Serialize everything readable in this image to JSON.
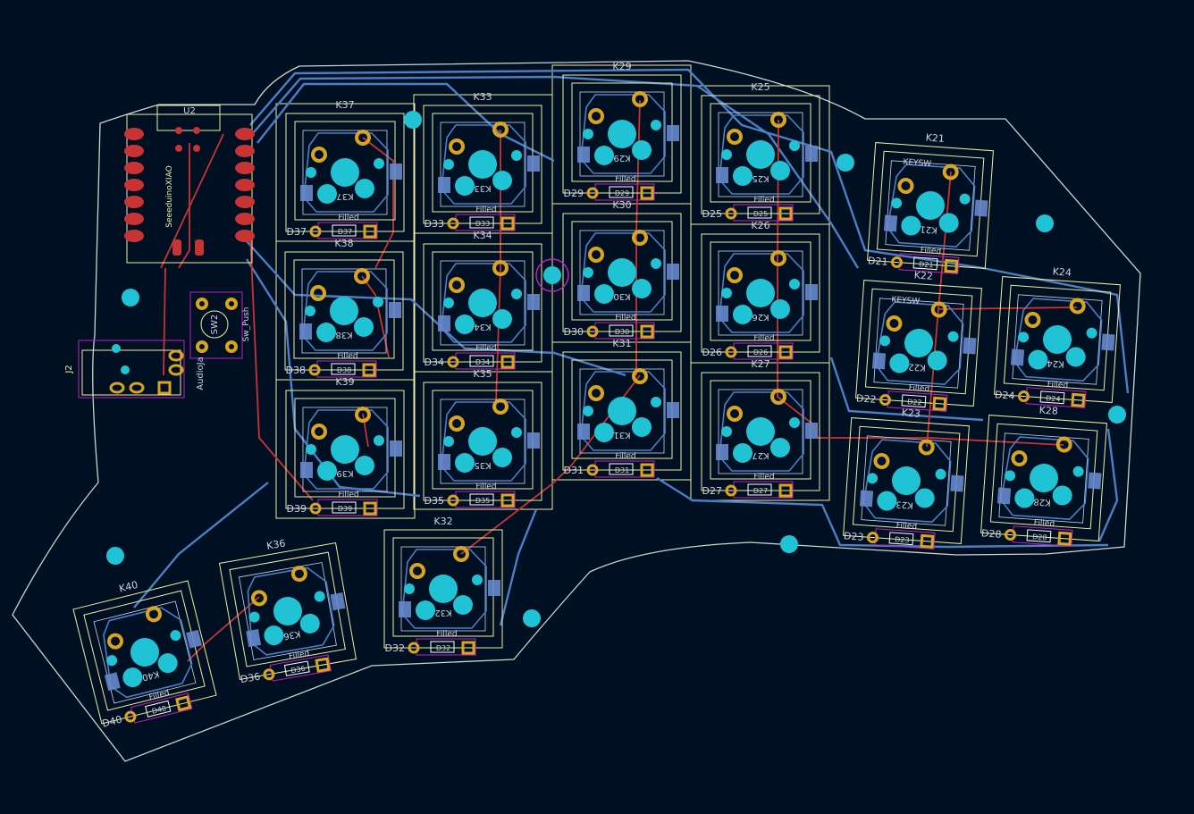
{
  "app": {
    "name": "PCB layout view",
    "colors": {
      "background": "#001023",
      "edge_cuts": "#d0d2cd",
      "silkscreen": "#f2eda1",
      "courtyard": "#f2eda1",
      "front_copper": "#c83434",
      "back_copper": "#4d7fc4",
      "pad_gold": "#d9a520",
      "hole_cyan": "#1fc3d4",
      "back_pad": "#6688cc",
      "fab_magenta": "#c21fbd",
      "text_grey": "#cfd3e0"
    }
  },
  "board": {
    "switches": [
      {
        "id": "K37",
        "ref": "K37",
        "diode": "D37"
      },
      {
        "id": "K38",
        "ref": "K38",
        "diode": "D38"
      },
      {
        "id": "K39",
        "ref": "K39",
        "diode": "D39"
      },
      {
        "id": "K33",
        "ref": "K33",
        "diode": "D33"
      },
      {
        "id": "K34",
        "ref": "K34",
        "diode": "D34"
      },
      {
        "id": "K35",
        "ref": "K35",
        "diode": "D35"
      },
      {
        "id": "K29",
        "ref": "K29",
        "diode": "D29"
      },
      {
        "id": "K30",
        "ref": "K30",
        "diode": "D30"
      },
      {
        "id": "K31",
        "ref": "K31",
        "diode": "D31"
      },
      {
        "id": "K25",
        "ref": "K25",
        "diode": "D25"
      },
      {
        "id": "K26",
        "ref": "K26",
        "diode": "D26"
      },
      {
        "id": "K27",
        "ref": "K27",
        "diode": "D27"
      },
      {
        "id": "K21",
        "ref": "K21",
        "diode": "D21",
        "value": "KEYSW"
      },
      {
        "id": "K22",
        "ref": "K22",
        "diode": "D22",
        "value": "KEYSW"
      },
      {
        "id": "K23",
        "ref": "K23",
        "diode": "D23"
      },
      {
        "id": "K24",
        "ref": "K24",
        "diode": "D24"
      },
      {
        "id": "K28",
        "ref": "K28",
        "diode": "D28"
      },
      {
        "id": "K32",
        "ref": "K32",
        "diode": "D32"
      },
      {
        "id": "K36",
        "ref": "K36",
        "diode": "D36"
      },
      {
        "id": "K40",
        "ref": "K40",
        "diode": "D40"
      }
    ],
    "filled_label": "Filled",
    "mcu": {
      "ref": "U2",
      "value": "SeeeduinoXIAO"
    },
    "push": {
      "ref": "SW2",
      "value": "Sw_Push"
    },
    "jack": {
      "ref": "J2",
      "value": "AudioJa"
    }
  }
}
